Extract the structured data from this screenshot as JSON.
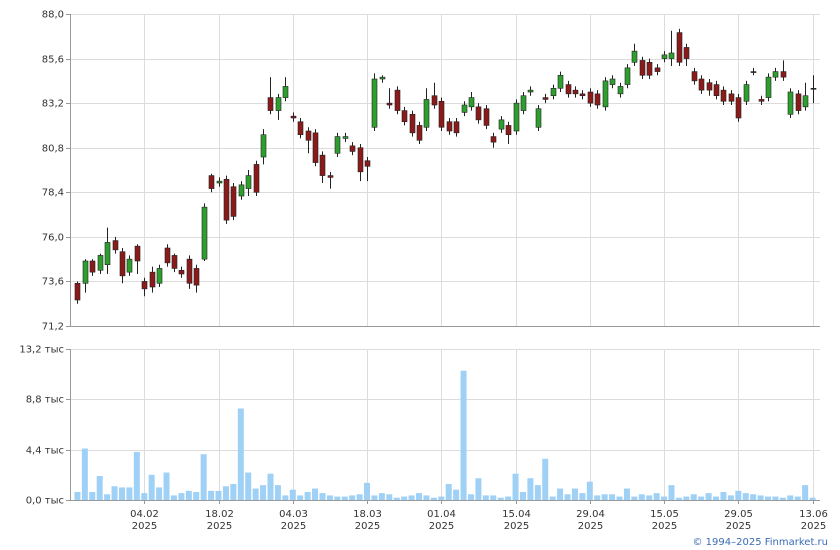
{
  "chart_data": [
    {
      "type": "candlestick",
      "xlim": [
        -1,
        100
      ],
      "ylim": [
        71.2,
        88
      ],
      "yticks": [
        {
          "value": 71.2,
          "label": "71,2"
        },
        {
          "value": 73.6,
          "label": "73,6"
        },
        {
          "value": 76,
          "label": "76,0"
        },
        {
          "value": 78.4,
          "label": "78,4"
        },
        {
          "value": 80.8,
          "label": "80,8"
        },
        {
          "value": 83.2,
          "label": "83,2"
        },
        {
          "value": 85.6,
          "label": "85,6"
        },
        {
          "value": 88,
          "label": "88,0"
        }
      ],
      "grid": true,
      "up_color": "#2e9e2e",
      "down_color": "#8b1a1a",
      "open": [
        73.5,
        73.5,
        74.7,
        74.2,
        74.5,
        75.8,
        75.2,
        74.1,
        75.5,
        73.6,
        74.1,
        73.5,
        75.4,
        75.0,
        74.2,
        74.8,
        74.3,
        74.8,
        79.3,
        78.9,
        79.1,
        78.7,
        78.2,
        78.6,
        79.9,
        80.3,
        83.5,
        82.8,
        83.5,
        82.5,
        82.2,
        81.7,
        81.6,
        80.4,
        79.3,
        80.5,
        81.3,
        80.9,
        80.8,
        80.1,
        81.9,
        84.5,
        83.2,
        83.9,
        82.8,
        82.6,
        82.0,
        81.9,
        83.6,
        83.3,
        82.2,
        82.2,
        82.7,
        83.0,
        83.0,
        82.9,
        81.4,
        81.8,
        82.0,
        81.7,
        82.8,
        83.8,
        81.9,
        83.5,
        83.6,
        84.0,
        84.2,
        83.9,
        83.7,
        83.8,
        83.7,
        83.0,
        84.2,
        83.7,
        84.2,
        85.4,
        85.5,
        85.4,
        85.1,
        85.6,
        85.6,
        87.0,
        86.2,
        84.9,
        84.5,
        84.3,
        84.2,
        83.9,
        83.7,
        83.5,
        83.3,
        84.9,
        83.4,
        83.5,
        84.6,
        84.9,
        82.6,
        83.7,
        83.0,
        84.0
      ],
      "high": [
        73.6,
        74.8,
        74.8,
        75.1,
        76.5,
        76.0,
        75.4,
        75.0,
        75.6,
        73.8,
        74.4,
        74.5,
        75.6,
        75.1,
        74.4,
        75.0,
        74.5,
        77.8,
        79.4,
        79.2,
        79.3,
        78.9,
        79.0,
        79.6,
        80.1,
        81.8,
        84.6,
        83.7,
        84.6,
        82.7,
        82.4,
        81.9,
        81.8,
        80.6,
        79.5,
        81.6,
        81.6,
        81.1,
        81.0,
        80.3,
        84.8,
        84.7,
        84.0,
        84.1,
        83.0,
        82.8,
        82.2,
        84.0,
        84.3,
        83.5,
        82.4,
        82.4,
        83.3,
        83.8,
        83.2,
        83.1,
        81.6,
        82.5,
        82.2,
        83.4,
        83.8,
        84.1,
        83.1,
        83.7,
        84.2,
        84.9,
        84.4,
        84.1,
        83.9,
        84.0,
        83.9,
        84.6,
        84.7,
        84.3,
        85.3,
        86.4,
        85.7,
        85.6,
        85.3,
        86.0,
        87.1,
        87.2,
        86.4,
        85.1,
        84.7,
        84.5,
        84.4,
        84.1,
        83.9,
        83.7,
        84.4,
        85.1,
        83.6,
        84.8,
        85.1,
        85.5,
        84.0,
        83.9,
        84.3,
        84.7
      ],
      "low": [
        72.4,
        73.0,
        73.9,
        74.0,
        74.0,
        75.1,
        73.5,
        73.9,
        74.0,
        72.8,
        73.0,
        73.3,
        74.4,
        74.1,
        73.8,
        73.2,
        73.0,
        74.7,
        78.4,
        78.7,
        76.7,
        76.9,
        78.0,
        78.2,
        78.2,
        79.9,
        82.6,
        82.3,
        83.3,
        82.2,
        81.3,
        80.5,
        79.8,
        78.9,
        78.6,
        80.3,
        81.1,
        80.4,
        79.0,
        79.0,
        81.7,
        84.3,
        82.9,
        82.6,
        82.0,
        81.4,
        81.0,
        81.7,
        82.9,
        81.7,
        81.5,
        81.4,
        82.5,
        82.8,
        82.1,
        81.8,
        80.8,
        81.6,
        81.0,
        81.5,
        82.6,
        83.6,
        81.7,
        83.2,
        83.4,
        83.8,
        83.5,
        83.5,
        83.4,
        83.0,
        82.9,
        82.8,
        84.0,
        83.5,
        84.0,
        85.2,
        84.5,
        84.5,
        84.7,
        85.4,
        85.2,
        85.2,
        85.2,
        84.2,
        83.7,
        83.6,
        83.4,
        83.1,
        83.1,
        82.2,
        83.1,
        84.7,
        83.1,
        83.3,
        84.4,
        84.4,
        82.4,
        82.6,
        82.8,
        83.2
      ],
      "close": [
        72.6,
        74.7,
        74.1,
        75.0,
        75.7,
        75.3,
        73.9,
        74.8,
        74.7,
        73.2,
        73.3,
        74.3,
        74.6,
        74.3,
        74.0,
        73.5,
        73.4,
        77.6,
        78.6,
        79.0,
        76.9,
        77.1,
        78.8,
        79.3,
        78.4,
        81.5,
        82.8,
        83.5,
        84.1,
        82.4,
        81.5,
        81.2,
        80.0,
        79.3,
        79.2,
        81.4,
        81.4,
        80.6,
        79.5,
        79.8,
        84.5,
        84.6,
        83.1,
        82.8,
        82.2,
        81.6,
        81.2,
        83.4,
        83.1,
        81.9,
        81.7,
        81.6,
        83.1,
        83.5,
        82.3,
        82.0,
        81.1,
        82.3,
        81.5,
        83.2,
        83.6,
        83.9,
        82.9,
        83.4,
        84.0,
        84.7,
        83.7,
        83.7,
        83.6,
        83.2,
        83.1,
        84.4,
        84.5,
        84.1,
        85.1,
        86.0,
        84.7,
        84.7,
        84.9,
        85.8,
        85.9,
        85.4,
        85.6,
        84.4,
        83.9,
        83.9,
        83.6,
        83.3,
        83.3,
        82.4,
        84.2,
        84.9,
        83.3,
        84.6,
        84.9,
        84.6,
        83.8,
        82.8,
        83.6,
        84.0
      ]
    },
    {
      "type": "bar",
      "xlim": [
        -1,
        100
      ],
      "ylim": [
        0,
        13.2
      ],
      "yticks": [
        {
          "value": 0,
          "label": "0,0 тыс"
        },
        {
          "value": 4.4,
          "label": "4,4 тыс"
        },
        {
          "value": 8.8,
          "label": "8,8 тыс"
        },
        {
          "value": 13.2,
          "label": "13,2 тыс"
        }
      ],
      "xticks": [
        {
          "value": 9,
          "label": "04.02"
        },
        {
          "value": 19,
          "label": "18.02"
        },
        {
          "value": 29,
          "label": "04.03"
        },
        {
          "value": 39,
          "label": "18.03"
        },
        {
          "value": 49,
          "label": "01.04"
        },
        {
          "value": 59,
          "label": "15.04"
        },
        {
          "value": 69,
          "label": "29.04"
        },
        {
          "value": 79,
          "label": "15.05"
        },
        {
          "value": 89,
          "label": "29.05"
        },
        {
          "value": 99,
          "label": "13.06"
        }
      ],
      "xtick_years": [
        "2025",
        "2025",
        "2025",
        "2025",
        "2025",
        "2025",
        "2025",
        "2025",
        "2025",
        "2025"
      ],
      "grid": true,
      "color": "#9fd0f5",
      "values": [
        0.7,
        4.5,
        0.7,
        2.1,
        0.5,
        1.2,
        1.1,
        1.1,
        4.2,
        0.6,
        2.2,
        1.1,
        2.4,
        0.4,
        0.6,
        0.8,
        0.7,
        4.0,
        0.8,
        0.8,
        1.2,
        1.4,
        8.0,
        2.4,
        1.0,
        1.3,
        2.3,
        1.3,
        0.4,
        0.9,
        0.4,
        0.7,
        1.0,
        0.6,
        0.4,
        0.3,
        0.3,
        0.4,
        0.5,
        1.5,
        0.4,
        0.6,
        0.5,
        0.2,
        0.3,
        0.4,
        0.6,
        0.4,
        0.2,
        0.3,
        1.4,
        0.9,
        11.3,
        0.5,
        1.9,
        0.4,
        0.4,
        0.2,
        0.3,
        2.3,
        0.7,
        1.9,
        1.3,
        3.6,
        0.3,
        1.0,
        0.5,
        1.0,
        0.6,
        1.6,
        0.4,
        0.5,
        0.5,
        0.3,
        1.0,
        0.3,
        0.5,
        0.4,
        0.6,
        0.3,
        1.3,
        0.2,
        0.3,
        0.5,
        0.3,
        0.6,
        0.3,
        0.7,
        0.4,
        0.8,
        0.6,
        0.5,
        0.4,
        0.3,
        0.3,
        0.2,
        0.4,
        0.3,
        1.3,
        0.2
      ]
    }
  ],
  "footer": "© 1994–2025 Finmarket.ru"
}
